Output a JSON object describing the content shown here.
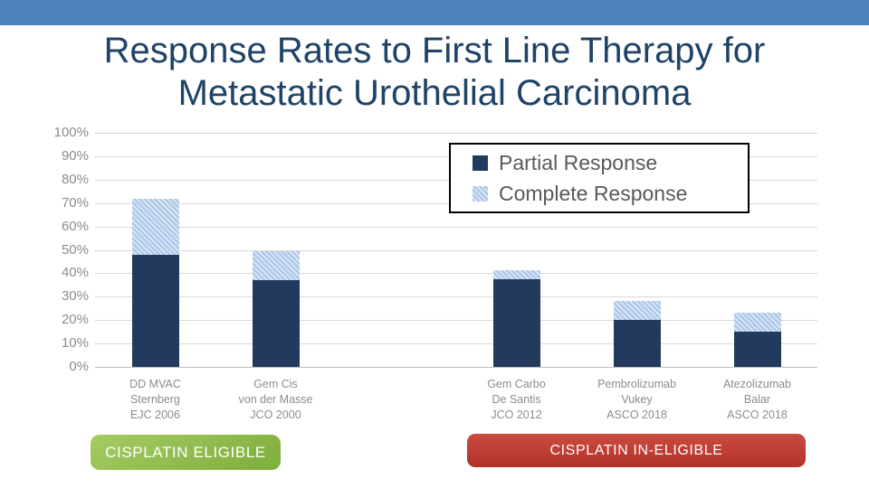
{
  "slide": {
    "title_line1": "Response Rates to First Line Therapy for",
    "title_line2": "Metastatic Urothelial Carcinoma"
  },
  "colors": {
    "banner": "#4f81bd",
    "title": "#1f4368",
    "partial": "#213a5e",
    "complete_base": "#b0c9e8",
    "stripe": "#eaf0f9",
    "grid": "#d9d9d9",
    "grid_dark": "#bfbfbf",
    "axis_text": "#8c8c8c",
    "legend_text": "#595959",
    "eligible_green_top": "#a6cb64",
    "eligible_green_bottom": "#7dae3b",
    "ineligible_red_top": "#cb4a41",
    "ineligible_red_bottom": "#b23128"
  },
  "chart_data": {
    "type": "bar",
    "stacked": true,
    "title": "Response Rates to First Line Therapy for Metastatic Urothelial Carcinoma",
    "xlabel": "",
    "ylabel": "",
    "ylim": [
      0,
      100
    ],
    "ytick_step": 10,
    "ytick_suffix": "%",
    "grid": true,
    "legend_position": "top-right",
    "slots": 6,
    "categories": [
      {
        "slot": 0,
        "label_lines": [
          "DD MVAC",
          "Sternberg",
          "EJC 2006"
        ]
      },
      {
        "slot": 1,
        "label_lines": [
          "Gem Cis",
          "von der Masse",
          "JCO 2000"
        ]
      },
      {
        "slot": 3,
        "label_lines": [
          "Gem Carbo",
          "De Santis",
          "JCO 2012"
        ]
      },
      {
        "slot": 4,
        "label_lines": [
          "Pembrolizumab",
          "Vukey",
          "ASCO 2018"
        ]
      },
      {
        "slot": 5,
        "label_lines": [
          "Atezolizumab",
          "Balar",
          "ASCO 2018"
        ]
      }
    ],
    "series": [
      {
        "name": "Partial Response",
        "style": "solid-navy",
        "values": [
          48,
          37,
          37.5,
          20,
          15
        ]
      },
      {
        "name": "Complete Response",
        "style": "striped-lightblue",
        "values": [
          24,
          12.5,
          4,
          8,
          8
        ]
      }
    ],
    "stack_totals": [
      72,
      49.5,
      41.5,
      28,
      23
    ]
  },
  "footer": {
    "eligible_label": "CISPLATIN ELIGIBLE",
    "ineligible_label": "CISPLATIN IN-ELIGIBLE"
  }
}
